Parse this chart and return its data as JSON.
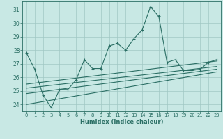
{
  "xlabel": "Humidex (Indice chaleur)",
  "background_color": "#c8e8e4",
  "line_color": "#2a6e64",
  "grid_color": "#a0c8c4",
  "xlim": [
    -0.5,
    23.5
  ],
  "ylim": [
    23.5,
    31.6
  ],
  "yticks": [
    24,
    25,
    26,
    27,
    28,
    29,
    30,
    31
  ],
  "xticks": [
    0,
    1,
    2,
    3,
    4,
    5,
    6,
    7,
    8,
    9,
    10,
    11,
    12,
    13,
    14,
    15,
    16,
    17,
    18,
    19,
    20,
    21,
    22,
    23
  ],
  "main_line_x": [
    0,
    1,
    2,
    3,
    4,
    5,
    6,
    7,
    8,
    9,
    10,
    11,
    12,
    13,
    14,
    15,
    16,
    17,
    18,
    19,
    20,
    21,
    22,
    23
  ],
  "main_line_y": [
    27.8,
    26.6,
    24.7,
    23.75,
    25.1,
    25.1,
    25.8,
    27.3,
    26.65,
    26.65,
    28.3,
    28.5,
    28.0,
    28.85,
    29.5,
    31.2,
    30.5,
    27.1,
    27.3,
    26.5,
    26.5,
    26.6,
    27.1,
    27.3
  ],
  "trend_lines": [
    {
      "x": [
        0,
        23
      ],
      "y": [
        25.5,
        27.2
      ]
    },
    {
      "x": [
        0,
        23
      ],
      "y": [
        25.2,
        26.8
      ]
    },
    {
      "x": [
        0,
        23
      ],
      "y": [
        24.8,
        26.6
      ]
    },
    {
      "x": [
        0,
        23
      ],
      "y": [
        24.0,
        26.4
      ]
    }
  ]
}
